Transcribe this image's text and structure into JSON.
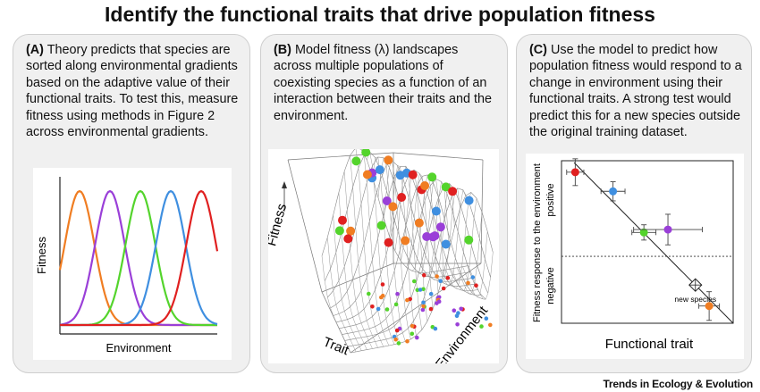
{
  "title": "Identify the functional traits that drive population fitness",
  "panels": {
    "a": {
      "letter": "(A)",
      "text": "Theory predicts that species are sorted along environmental gradients based on the adaptive value of their functional traits. To test this, measure fitness using methods in Figure 2 across environmental gradients.",
      "ylabel": "Fitness",
      "xlabel": "Environment"
    },
    "b": {
      "letter": "(B)",
      "text": "Model fitness (λ) landscapes across multiple populations of coexisting species as a function of an interaction between their traits and the environment.",
      "zlabel": "Fitness",
      "xlabel": "Trait",
      "ylabel": "Environment"
    },
    "c": {
      "letter": "(C)",
      "text": "Use the model to predict how population fitness would respond to a change in environment using their functional traits. A strong test would predict this for a new species outside the original training dataset.",
      "ylabel": "Fitness response to the environment",
      "ylabel_positive": "positive",
      "ylabel_negative": "negative",
      "xlabel": "Functional trait",
      "annotation": "new species"
    }
  },
  "footer": "Trends in Ecology & Evolution",
  "colors": {
    "orange": "#f07d22",
    "purple": "#9a3fd8",
    "green": "#54d42c",
    "blue": "#3f8fe0",
    "red": "#e02020",
    "panel_bg": "#f0f0f0"
  },
  "chart_data": {
    "type": "scatter",
    "xlabel": "Functional trait",
    "ylabel": "Fitness response to the environment",
    "series": [
      {
        "color": "red",
        "x": 0.08,
        "y": 0.88,
        "xerr": 0.05,
        "yerr": 0.14
      },
      {
        "color": "blue",
        "x": 0.3,
        "y": 0.68,
        "xerr": 0.07,
        "yerr": 0.1
      },
      {
        "color": "green",
        "x": 0.48,
        "y": 0.25,
        "xerr": 0.07,
        "yerr": 0.08
      },
      {
        "color": "purple",
        "x": 0.62,
        "y": 0.28,
        "xerr": 0.2,
        "yerr": 0.16
      },
      {
        "color": "orange",
        "x": 0.86,
        "y": -0.52,
        "xerr": 0.06,
        "yerr": 0.15
      }
    ],
    "new_species": {
      "x": 0.78,
      "y": -0.3
    },
    "ylim": [
      -0.7,
      1.0
    ],
    "xlim": [
      0,
      1
    ]
  }
}
